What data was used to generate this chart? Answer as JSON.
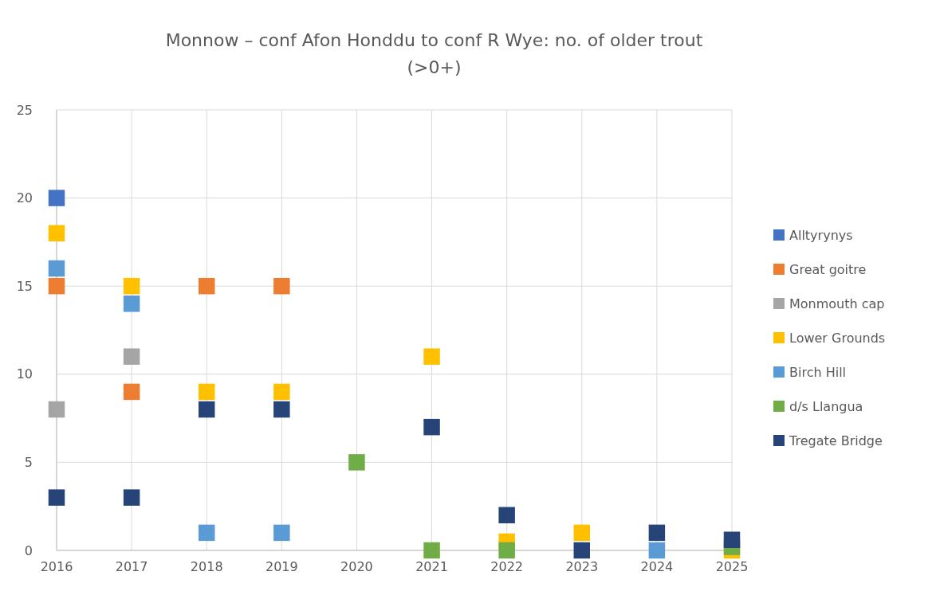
{
  "chart_data": {
    "type": "scatter",
    "title": "Monnow – conf Afon Honddu to conf R Wye: no. of older trout (>0+)",
    "xlim": [
      2016,
      2025
    ],
    "xticks": [
      2016,
      2017,
      2018,
      2019,
      2020,
      2021,
      2022,
      2023,
      2024,
      2025
    ],
    "ylim": [
      0,
      25
    ],
    "yticks": [
      0,
      5,
      10,
      15,
      20,
      25
    ],
    "grid": true,
    "legend": "right",
    "marker": "square",
    "series": [
      {
        "name": "Alltyrynys",
        "color": "#4472c4",
        "x": [
          2016
        ],
        "values": [
          20
        ]
      },
      {
        "name": "Great goitre",
        "color": "#ed7d31",
        "x": [
          2016,
          2017,
          2018,
          2019
        ],
        "values": [
          15,
          9,
          15,
          15
        ]
      },
      {
        "name": "Monmouth cap",
        "color": "#a5a5a5",
        "x": [
          2016,
          2017
        ],
        "values": [
          8,
          11
        ]
      },
      {
        "name": "Lower Grounds",
        "color": "#ffc000",
        "x": [
          2016,
          2017,
          2018,
          2019,
          2021,
          2022,
          2023,
          2025
        ],
        "values": [
          18,
          15,
          9,
          9,
          11,
          0.5,
          1,
          0
        ]
      },
      {
        "name": "Birch Hill",
        "color": "#5b9bd5",
        "x": [
          2016,
          2017,
          2018,
          2019,
          2024
        ],
        "values": [
          16,
          14,
          1,
          1,
          0
        ]
      },
      {
        "name": "d/s Llangua",
        "color": "#70ad47",
        "x": [
          2020,
          2021,
          2022,
          2025
        ],
        "values": [
          5,
          0,
          0,
          0.2
        ]
      },
      {
        "name": "Tregate Bridge",
        "color": "#264478",
        "x": [
          2016,
          2017,
          2018,
          2019,
          2021,
          2022,
          2023,
          2024,
          2025
        ],
        "values": [
          3,
          3,
          8,
          8,
          7,
          2,
          0,
          1,
          0.6
        ]
      }
    ]
  }
}
